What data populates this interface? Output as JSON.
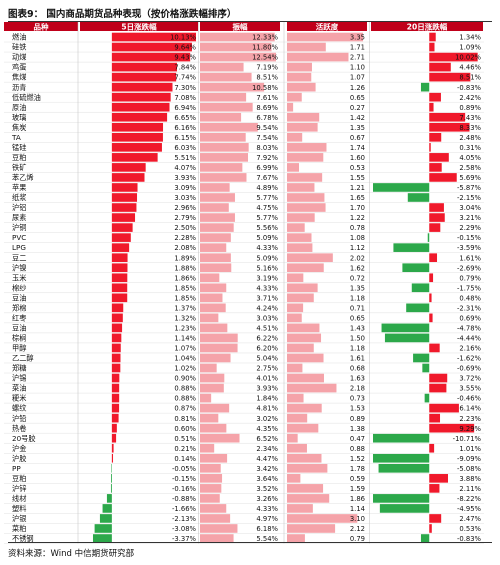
{
  "title": "图表9：  国内商品期货品种表现（按价格涨跌幅排序）",
  "source": "资料来源：Wind  中信期货研究部",
  "colors": {
    "header": "#c0001a",
    "pos_bar": "#f0192b",
    "neg_bar": "#2ca84a",
    "volume_bar": "#f5a3a9",
    "text": "#111111"
  },
  "chart_data": {
    "type": "table",
    "columns": [
      "品种",
      "5日涨跌幅",
      "振幅",
      "活跃度",
      "20日涨跌幅"
    ],
    "rows": [
      [
        "燃油",
        "10.13%",
        "12.33%",
        "3.35",
        "1.34%"
      ],
      [
        "硅铁",
        "9.64%",
        "11.80%",
        "1.71",
        "1.09%"
      ],
      [
        "动煤",
        "9.43%",
        "12.54%",
        "2.71",
        "10.02%"
      ],
      [
        "鸡蛋",
        "7.84%",
        "7.19%",
        "1.10",
        "4.46%"
      ],
      [
        "焦煤",
        "7.74%",
        "8.51%",
        "1.07",
        "8.51%"
      ],
      [
        "沥青",
        "7.30%",
        "10.58%",
        "1.26",
        "-0.83%"
      ],
      [
        "低硫燃油",
        "7.08%",
        "7.61%",
        "0.65",
        "2.42%"
      ],
      [
        "原油",
        "6.94%",
        "8.69%",
        "0.27",
        "0.89%"
      ],
      [
        "玻璃",
        "6.65%",
        "6.78%",
        "1.42",
        "7.43%"
      ],
      [
        "焦炭",
        "6.16%",
        "9.54%",
        "1.35",
        "8.33%"
      ],
      [
        "TA",
        "6.15%",
        "7.54%",
        "0.67",
        "2.48%"
      ],
      [
        "锰硅",
        "6.03%",
        "8.03%",
        "1.74",
        "0.31%"
      ],
      [
        "豆粕",
        "5.51%",
        "7.92%",
        "1.60",
        "4.05%"
      ],
      [
        "铁矿",
        "4.07%",
        "6.99%",
        "0.53",
        "2.58%"
      ],
      [
        "苯乙烯",
        "3.93%",
        "7.67%",
        "1.55",
        "5.69%"
      ],
      [
        "苹果",
        "3.09%",
        "4.89%",
        "1.21",
        "-5.87%"
      ],
      [
        "纸浆",
        "3.03%",
        "5.77%",
        "1.65",
        "-2.15%"
      ],
      [
        "沪铝",
        "2.96%",
        "4.75%",
        "1.70",
        "3.04%"
      ],
      [
        "尿素",
        "2.79%",
        "5.77%",
        "1.22",
        "3.21%"
      ],
      [
        "沪铜",
        "2.50%",
        "5.56%",
        "0.78",
        "2.29%"
      ],
      [
        "PVC",
        "2.28%",
        "5.09%",
        "1.08",
        "-0.15%"
      ],
      [
        "LPG",
        "2.08%",
        "4.33%",
        "1.12",
        "-3.59%"
      ],
      [
        "豆二",
        "1.89%",
        "5.09%",
        "2.02",
        "1.61%"
      ],
      [
        "沪镍",
        "1.88%",
        "5.16%",
        "1.62",
        "-2.69%"
      ],
      [
        "玉米",
        "1.86%",
        "3.19%",
        "0.72",
        "0.79%"
      ],
      [
        "棉纱",
        "1.85%",
        "4.33%",
        "1.35",
        "-1.75%"
      ],
      [
        "豆油",
        "1.85%",
        "3.71%",
        "1.18",
        "0.48%"
      ],
      [
        "郑棉",
        "1.37%",
        "4.24%",
        "0.71",
        "-2.31%"
      ],
      [
        "红枣",
        "1.32%",
        "3.03%",
        "0.65",
        "0.69%"
      ],
      [
        "豆油",
        "1.23%",
        "4.51%",
        "1.43",
        "-4.78%"
      ],
      [
        "棕榈",
        "1.14%",
        "6.22%",
        "1.50",
        "-4.44%"
      ],
      [
        "甲醇",
        "1.07%",
        "6.20%",
        "1.18",
        "2.16%"
      ],
      [
        "乙二醇",
        "1.04%",
        "5.04%",
        "1.61",
        "-1.62%"
      ],
      [
        "郑糖",
        "1.02%",
        "2.75%",
        "0.68",
        "-0.69%"
      ],
      [
        "沪锡",
        "0.90%",
        "4.01%",
        "1.63",
        "3.72%"
      ],
      [
        "菜油",
        "0.88%",
        "3.93%",
        "2.18",
        "3.55%"
      ],
      [
        "粳米",
        "0.88%",
        "1.84%",
        "0.73",
        "-0.46%"
      ],
      [
        "螺纹",
        "0.87%",
        "4.81%",
        "1.53",
        "6.14%"
      ],
      [
        "沪铅",
        "0.81%",
        "3.02%",
        "0.89",
        "2.23%"
      ],
      [
        "热卷",
        "0.60%",
        "4.35%",
        "1.38",
        "9.29%"
      ],
      [
        "20号胶",
        "0.51%",
        "6.52%",
        "0.47",
        "-10.71%"
      ],
      [
        "沪金",
        "0.21%",
        "2.34%",
        "0.88",
        "1.01%"
      ],
      [
        "沪胶",
        "0.14%",
        "4.47%",
        "1.52",
        "-9.09%"
      ],
      [
        "PP",
        "-0.05%",
        "3.42%",
        "1.78",
        "-5.08%"
      ],
      [
        "豆粕",
        "-0.15%",
        "3.64%",
        "0.59",
        "3.88%"
      ],
      [
        "沪锌",
        "-0.16%",
        "3.52%",
        "1.59",
        "2.11%"
      ],
      [
        "线材",
        "-0.88%",
        "3.26%",
        "1.86",
        "-8.22%"
      ],
      [
        "塑料",
        "-1.66%",
        "4.33%",
        "1.14",
        "-4.95%"
      ],
      [
        "沪银",
        "-2.13%",
        "4.97%",
        "3.10",
        "2.47%"
      ],
      [
        "菜粕",
        "-3.08%",
        "6.18%",
        "2.12",
        "0.53%"
      ],
      [
        "不锈钢",
        "-3.37%",
        "5.54%",
        "0.79",
        "-0.83%"
      ]
    ]
  }
}
